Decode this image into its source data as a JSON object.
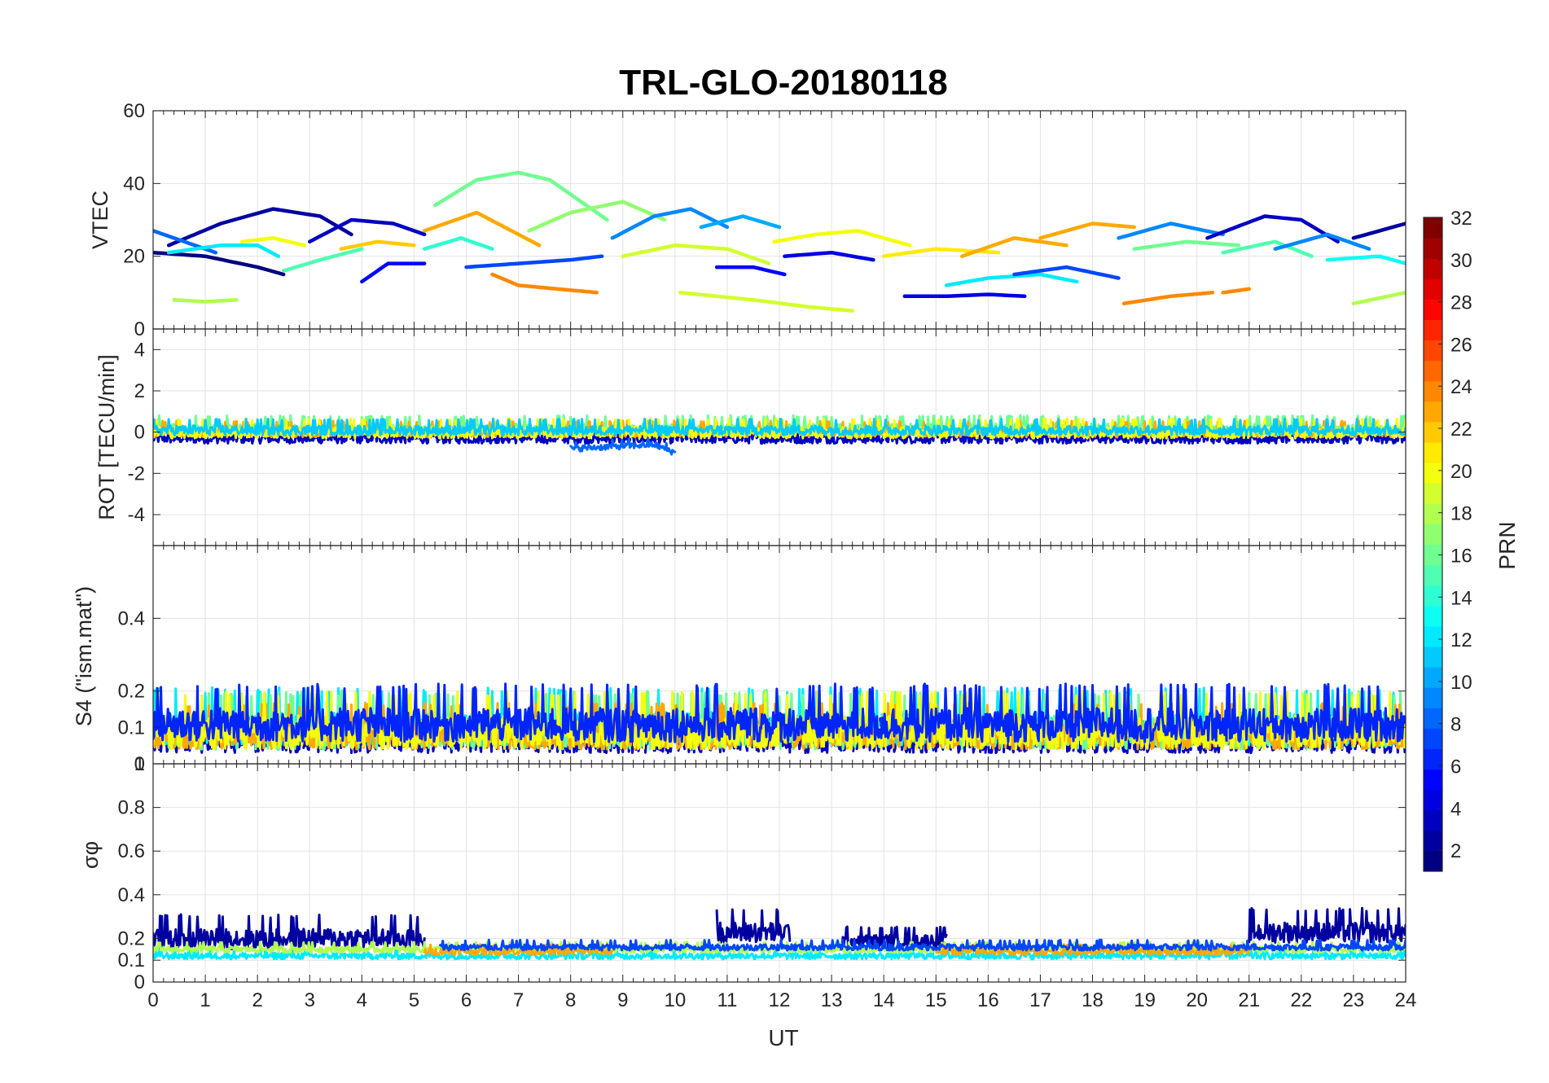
{
  "chart_data": {
    "type": "line",
    "title": "TRL-GLO-20180118",
    "xlabel": "UT",
    "x_ticks": [
      "0",
      "1",
      "2",
      "3",
      "4",
      "5",
      "6",
      "7",
      "8",
      "9",
      "10",
      "11",
      "12",
      "13",
      "14",
      "15",
      "16",
      "17",
      "18",
      "19",
      "20",
      "21",
      "22",
      "23",
      "24"
    ],
    "xlim": [
      0,
      24
    ],
    "colorbar": {
      "label": "PRN",
      "ticks": [
        "2",
        "4",
        "6",
        "8",
        "10",
        "12",
        "14",
        "16",
        "18",
        "20",
        "22",
        "24",
        "26",
        "28",
        "30",
        "32"
      ],
      "range": [
        1,
        32
      ],
      "colormap": "jet",
      "colors": [
        "#00008f",
        "#0000ff",
        "#0080ff",
        "#00ffff",
        "#80ff80",
        "#ffff00",
        "#ff8000",
        "#ff0000",
        "#800000"
      ]
    },
    "panels": [
      {
        "id": "vtec",
        "ylabel": "VTEC",
        "ylim": [
          0,
          60
        ],
        "y_ticks": [
          "0",
          "20",
          "40",
          "60"
        ],
        "series": [
          {
            "prn": 2,
            "x": [
              0.3,
              1.3,
              2.3,
              3.2,
              3.8
            ],
            "y": [
              23,
              29,
              33,
              31,
              26
            ]
          },
          {
            "prn": 3,
            "x": [
              3.0,
              3.8,
              4.6,
              5.2
            ],
            "y": [
              24,
              30,
              29,
              26
            ]
          },
          {
            "prn": 1,
            "x": [
              0.0,
              1.0,
              2.0,
              2.5
            ],
            "y": [
              21,
              20,
              17,
              15
            ]
          },
          {
            "prn": 8,
            "x": [
              0.0,
              0.6,
              1.2
            ],
            "y": [
              27,
              24,
              21
            ]
          },
          {
            "prn": 18,
            "x": [
              0.4,
              1.0,
              1.6
            ],
            "y": [
              8,
              7.5,
              8
            ]
          },
          {
            "prn": 12,
            "x": [
              0.3,
              1.3,
              2.0,
              2.4
            ],
            "y": [
              21,
              23,
              23,
              20
            ]
          },
          {
            "prn": 20,
            "x": [
              1.7,
              2.3,
              2.9
            ],
            "y": [
              24,
              25,
              23
            ]
          },
          {
            "prn": 15,
            "x": [
              2.5,
              3.2,
              4.0
            ],
            "y": [
              16,
              19,
              22
            ]
          },
          {
            "prn": 5,
            "x": [
              4.0,
              4.5,
              5.2
            ],
            "y": [
              13,
              18,
              18
            ]
          },
          {
            "prn": 22,
            "x": [
              3.6,
              4.3,
              5.0
            ],
            "y": [
              22,
              24,
              23
            ]
          },
          {
            "prn": 14,
            "x": [
              5.2,
              5.9,
              6.5
            ],
            "y": [
              22,
              25,
              22
            ]
          },
          {
            "prn": 16,
            "x": [
              5.4,
              6.2,
              7.0,
              7.6,
              8.7
            ],
            "y": [
              34,
              41,
              43,
              41,
              30
            ]
          },
          {
            "prn": 23,
            "x": [
              5.2,
              6.2,
              7.4
            ],
            "y": [
              27,
              32,
              23
            ]
          },
          {
            "prn": 24,
            "x": [
              6.5,
              7.0,
              8.5
            ],
            "y": [
              15,
              12,
              10
            ]
          },
          {
            "prn": 17,
            "x": [
              7.2,
              8.0,
              9.0,
              9.8
            ],
            "y": [
              27,
              32,
              35,
              30
            ]
          },
          {
            "prn": 9,
            "x": [
              8.8,
              9.6,
              10.3,
              11.0
            ],
            "y": [
              25,
              31,
              33,
              28
            ]
          },
          {
            "prn": 7,
            "x": [
              6.0,
              7.0,
              8.0,
              8.6
            ],
            "y": [
              17,
              18,
              19,
              20
            ]
          },
          {
            "prn": 19,
            "x": [
              9.0,
              10.0,
              11.0,
              11.8
            ],
            "y": [
              20,
              23,
              22,
              18
            ]
          },
          {
            "prn": 10,
            "x": [
              10.5,
              11.3,
              12.0
            ],
            "y": [
              28,
              31,
              28
            ]
          },
          {
            "prn": 20,
            "x": [
              11.9,
              12.7,
              13.5,
              14.5
            ],
            "y": [
              24,
              26,
              27,
              23
            ]
          },
          {
            "prn": 5,
            "x": [
              10.8,
              11.5,
              12.1
            ],
            "y": [
              17,
              17,
              15
            ]
          },
          {
            "prn": 19,
            "x": [
              10.1,
              11.5,
              12.6,
              13.4
            ],
            "y": [
              10,
              8,
              6,
              5
            ]
          },
          {
            "prn": 4,
            "x": [
              12.1,
              13.0,
              13.8
            ],
            "y": [
              20,
              21,
              19
            ]
          },
          {
            "prn": 4,
            "x": [
              14.4,
              15.2,
              16.0,
              16.7
            ],
            "y": [
              9,
              9,
              9.5,
              9
            ]
          },
          {
            "prn": 12,
            "x": [
              15.2,
              16.0,
              17.0,
              17.7
            ],
            "y": [
              12,
              14,
              15,
              13
            ]
          },
          {
            "prn": 21,
            "x": [
              14.0,
              15.0,
              16.2
            ],
            "y": [
              20,
              22,
              21
            ]
          },
          {
            "prn": 23,
            "x": [
              15.5,
              16.5,
              17.5
            ],
            "y": [
              20,
              25,
              23
            ]
          },
          {
            "prn": 23,
            "x": [
              17.0,
              18.0,
              18.8
            ],
            "y": [
              25,
              29,
              28
            ]
          },
          {
            "prn": 7,
            "x": [
              16.5,
              17.5,
              18.5
            ],
            "y": [
              15,
              17,
              14
            ]
          },
          {
            "prn": 24,
            "x": [
              18.6,
              19.5,
              20.3
            ],
            "y": [
              7,
              9,
              10
            ]
          },
          {
            "prn": 9,
            "x": [
              18.5,
              19.5,
              20.5
            ],
            "y": [
              25,
              29,
              26
            ]
          },
          {
            "prn": 16,
            "x": [
              18.8,
              19.8,
              20.8
            ],
            "y": [
              22,
              24,
              23
            ]
          },
          {
            "prn": 3,
            "x": [
              20.2,
              21.3,
              22.0,
              22.7
            ],
            "y": [
              25,
              31,
              30,
              24
            ]
          },
          {
            "prn": 15,
            "x": [
              20.5,
              21.5,
              22.2
            ],
            "y": [
              21,
              24,
              20
            ]
          },
          {
            "prn": 9,
            "x": [
              21.5,
              22.5,
              23.3
            ],
            "y": [
              22,
              26,
              22
            ]
          },
          {
            "prn": 2,
            "x": [
              23.0,
              24.0
            ],
            "y": [
              25,
              29
            ]
          },
          {
            "prn": 18,
            "x": [
              23.0,
              24.0
            ],
            "y": [
              7,
              10
            ]
          },
          {
            "prn": 13,
            "x": [
              22.5,
              23.5,
              24.0
            ],
            "y": [
              19,
              20,
              18
            ]
          },
          {
            "prn": 24,
            "x": [
              20.5,
              21.0
            ],
            "y": [
              10,
              11
            ]
          }
        ]
      },
      {
        "id": "rot",
        "ylabel": "ROT [TECU/min]",
        "ylim": [
          -5.5,
          5
        ],
        "y_ticks": [
          "-4",
          "-2",
          "0",
          "2",
          "4"
        ],
        "series": [
          {
            "prn": 3,
            "x": [
              0,
              24
            ],
            "y": [
              -0.3,
              -0.3
            ],
            "noise": 0.25
          },
          {
            "prn": 16,
            "x": [
              0,
              24
            ],
            "y": [
              0.15,
              0.15
            ],
            "noise": 0.3
          },
          {
            "prn": 23,
            "x": [
              0,
              24
            ],
            "y": [
              0.0,
              0.0
            ],
            "noise": 0.25
          },
          {
            "prn": 20,
            "x": [
              0,
              24
            ],
            "y": [
              0.0,
              0.0
            ],
            "noise": 0.3
          },
          {
            "prn": 11,
            "x": [
              0,
              24
            ],
            "y": [
              0.1,
              0.1
            ],
            "noise": 0.25
          },
          {
            "prn": 8,
            "x": [
              8.0,
              9.6,
              10.0
            ],
            "y": [
              -0.8,
              -0.6,
              -1.0
            ],
            "noise": 0.15
          }
        ]
      },
      {
        "id": "s4",
        "ylabel": "S4 (\"ism.mat\")",
        "ylim": [
          0,
          0.6
        ],
        "y_ticks": [
          "0",
          "0.1",
          "0.2",
          "0.4"
        ],
        "series": [
          {
            "prn": 3,
            "x": [
              0,
              24
            ],
            "y": [
              0.06,
              0.06
            ],
            "noise": 0.03
          },
          {
            "prn": 12,
            "x": [
              0,
              24
            ],
            "y": [
              0.1,
              0.1
            ],
            "noise": 0.05
          },
          {
            "prn": 16,
            "x": [
              0,
              24
            ],
            "y": [
              0.09,
              0.09
            ],
            "noise": 0.05
          },
          {
            "prn": 23,
            "x": [
              0,
              24
            ],
            "y": [
              0.08,
              0.08
            ],
            "noise": 0.04
          },
          {
            "prn": 20,
            "x": [
              0,
              24
            ],
            "y": [
              0.09,
              0.09
            ],
            "noise": 0.05
          },
          {
            "prn": 6,
            "x": [
              0,
              24
            ],
            "y": [
              0.11,
              0.11
            ],
            "noise": 0.05
          }
        ]
      },
      {
        "id": "sigma",
        "ylabel": "σφ",
        "ylim": [
          0,
          1
        ],
        "y_ticks": [
          "0",
          "0.1",
          "0.2",
          "0.4",
          "0.6",
          "0.8",
          "1"
        ],
        "series": [
          {
            "prn": 2,
            "x": [
              0.0,
              5.2
            ],
            "y": [
              0.2,
              0.2
            ],
            "noise": 0.05
          },
          {
            "prn": 2,
            "x": [
              10.8,
              12.2
            ],
            "y": [
              0.23,
              0.23
            ],
            "noise": 0.05
          },
          {
            "prn": 2,
            "x": [
              13.2,
              15.2
            ],
            "y": [
              0.19,
              0.19
            ],
            "noise": 0.03
          },
          {
            "prn": 2,
            "x": [
              21.0,
              24.0
            ],
            "y": [
              0.23,
              0.23
            ],
            "noise": 0.05
          },
          {
            "prn": 12,
            "x": [
              0,
              24
            ],
            "y": [
              0.12,
              0.12
            ],
            "noise": 0.015
          },
          {
            "prn": 18,
            "x": [
              0,
              24
            ],
            "y": [
              0.15,
              0.15
            ],
            "noise": 0.015
          },
          {
            "prn": 23,
            "x": [
              5.2,
              8.8
            ],
            "y": [
              0.14,
              0.14
            ],
            "noise": 0.015
          },
          {
            "prn": 23,
            "x": [
              15.0,
              21.0
            ],
            "y": [
              0.14,
              0.14
            ],
            "noise": 0.015
          },
          {
            "prn": 7,
            "x": [
              5.5,
              24
            ],
            "y": [
              0.16,
              0.16
            ],
            "noise": 0.015
          }
        ]
      }
    ]
  }
}
